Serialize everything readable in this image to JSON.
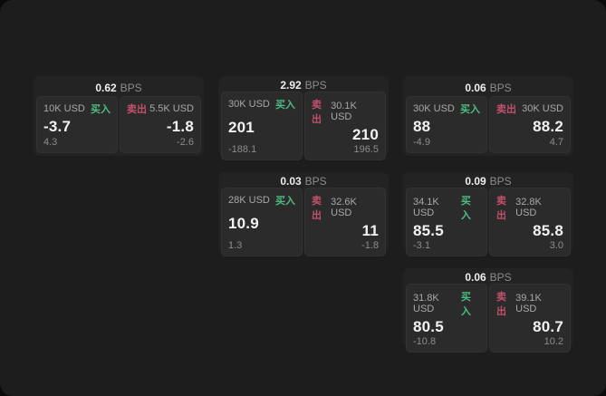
{
  "labels": {
    "bps_unit": "BPS",
    "buy": "买入",
    "sell": "卖出"
  },
  "colors": {
    "buy_accent": "#4cbd82",
    "sell_accent": "#c2506a",
    "window_bg": "#1d1d1d",
    "card_bg": "#232323",
    "panel_bg": "#2b2b2b",
    "value_text": "#f2f2f2",
    "muted_text": "#8c8c8c"
  },
  "cards": [
    {
      "bps": "0.62",
      "buy": {
        "amount": "10K USD",
        "price": "-3.7",
        "change": "4.3"
      },
      "sell": {
        "amount": "5.5K USD",
        "price": "-1.8",
        "change": "-2.6"
      }
    },
    {
      "bps": "2.92",
      "buy": {
        "amount": "30K USD",
        "price": "201",
        "change": "-188.1"
      },
      "sell": {
        "amount": "30.1K USD",
        "price": "210",
        "change": "196.5"
      }
    },
    {
      "bps": "0.06",
      "buy": {
        "amount": "30K USD",
        "price": "88",
        "change": "-4.9"
      },
      "sell": {
        "amount": "30K USD",
        "price": "88.2",
        "change": "4.7"
      }
    },
    {
      "bps": "0.03",
      "buy": {
        "amount": "28K USD",
        "price": "10.9",
        "change": "1.3"
      },
      "sell": {
        "amount": "32.6K USD",
        "price": "11",
        "change": "-1.8"
      }
    },
    {
      "bps": "0.09",
      "buy": {
        "amount": "34.1K USD",
        "price": "85.5",
        "change": "-3.1"
      },
      "sell": {
        "amount": "32.8K USD",
        "price": "85.8",
        "change": "3.0"
      }
    },
    {
      "bps": "0.06",
      "buy": {
        "amount": "31.8K USD",
        "price": "80.5",
        "change": "-10.8"
      },
      "sell": {
        "amount": "39.1K USD",
        "price": "80.7",
        "change": "10.2"
      }
    }
  ]
}
